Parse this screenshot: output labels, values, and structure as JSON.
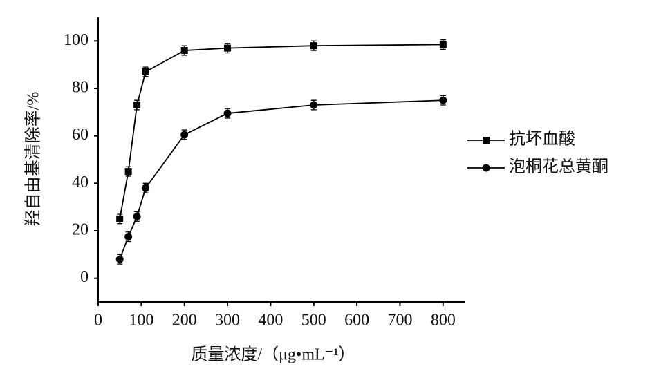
{
  "chart_data": {
    "type": "line",
    "ylabel": "羟自由基清除率/%",
    "xlabel": "质量浓度/（μg•mL⁻¹）",
    "x": [
      50,
      70,
      90,
      110,
      200,
      300,
      500,
      800
    ],
    "series": [
      {
        "name": "抗坏血酸",
        "color": "#000000",
        "marker": "square",
        "values": [
          25,
          45,
          73,
          87,
          96,
          97,
          98,
          98.5
        ],
        "errors": [
          2,
          2,
          2,
          2,
          2,
          2,
          2,
          2
        ]
      },
      {
        "name": "泡桐花总黄酮",
        "color": "#000000",
        "marker": "circle",
        "values": [
          8,
          17.5,
          26,
          38,
          60.5,
          69.5,
          73,
          75
        ],
        "errors": [
          2,
          2,
          2,
          2,
          2,
          2,
          2,
          2
        ]
      }
    ],
    "xlim": [
      0,
      850
    ],
    "xticks": [
      0,
      100,
      200,
      300,
      400,
      500,
      600,
      700,
      800
    ],
    "ylim": [
      -10,
      110
    ],
    "yticks": [
      0,
      20,
      40,
      60,
      80,
      100
    ],
    "legend": "right"
  }
}
